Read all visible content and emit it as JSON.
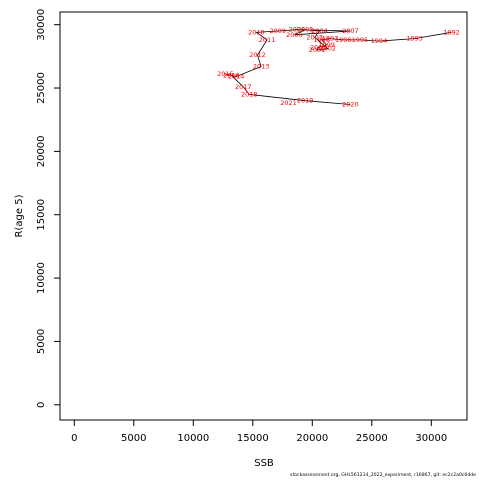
{
  "chart_data": {
    "type": "line",
    "xlabel": "SSB",
    "ylabel": "R(age 5)",
    "xlim": [
      -1200,
      33000
    ],
    "ylim": [
      -1200,
      31000
    ],
    "x_ticks": [
      0,
      5000,
      10000,
      15000,
      20000,
      25000,
      30000
    ],
    "y_ticks": [
      0,
      5000,
      10000,
      15000,
      20000,
      25000,
      30000
    ],
    "line_color": "#000000",
    "label_color": "#ff0000",
    "points": [
      {
        "year": "1992",
        "x": 31700,
        "y": 29400
      },
      {
        "year": "1993",
        "x": 28600,
        "y": 28900
      },
      {
        "year": "1994",
        "x": 25600,
        "y": 28700
      },
      {
        "year": "1995",
        "x": 24000,
        "y": 28800
      },
      {
        "year": "1996",
        "x": 22600,
        "y": 28800
      },
      {
        "year": "1997",
        "x": 21500,
        "y": 28900
      },
      {
        "year": "1998",
        "x": 20800,
        "y": 28800
      },
      {
        "year": "1999",
        "x": 21200,
        "y": 28400
      },
      {
        "year": "2000",
        "x": 20500,
        "y": 28200
      },
      {
        "year": "2001",
        "x": 20400,
        "y": 28000
      },
      {
        "year": "2002",
        "x": 21300,
        "y": 28100
      },
      {
        "year": "2003",
        "x": 20200,
        "y": 29000
      },
      {
        "year": "2004",
        "x": 20600,
        "y": 29500
      },
      {
        "year": "2005",
        "x": 19400,
        "y": 29600
      },
      {
        "year": "2006",
        "x": 18500,
        "y": 29200
      },
      {
        "year": "2007",
        "x": 23200,
        "y": 29500
      },
      {
        "year": "2008",
        "x": 18700,
        "y": 29600
      },
      {
        "year": "2009",
        "x": 17100,
        "y": 29500
      },
      {
        "year": "2010",
        "x": 15300,
        "y": 29400
      },
      {
        "year": "2011",
        "x": 16200,
        "y": 28800
      },
      {
        "year": "2012",
        "x": 15400,
        "y": 27600
      },
      {
        "year": "2013",
        "x": 15700,
        "y": 26700
      },
      {
        "year": "2014",
        "x": 13600,
        "y": 25900
      },
      {
        "year": "2015",
        "x": 12700,
        "y": 26100
      },
      {
        "year": "2016",
        "x": 13200,
        "y": 26000
      },
      {
        "year": "2017",
        "x": 14200,
        "y": 25100
      },
      {
        "year": "2018",
        "x": 14700,
        "y": 24500
      },
      {
        "year": "2019",
        "x": 19400,
        "y": 24000
      },
      {
        "year": "2020",
        "x": 23200,
        "y": 23700
      },
      {
        "year": "2021",
        "x": 18000,
        "y": 23800
      }
    ],
    "path_order": [
      "1992",
      "1993",
      "1994",
      "1995",
      "1996",
      "1997",
      "1998",
      "1999",
      "2000",
      "2001",
      "2002",
      "2003",
      "2004",
      "2005",
      "2006",
      "2007",
      "2008",
      "2009",
      "2010",
      "2011",
      "2012",
      "2013",
      "2014",
      "2015",
      "2016",
      "2017",
      "2018",
      "2019",
      "2020"
    ]
  },
  "footer": "stockassessment.org, GHL561214_2022_experiment, r16867, git: ec2c2a0c6dde"
}
